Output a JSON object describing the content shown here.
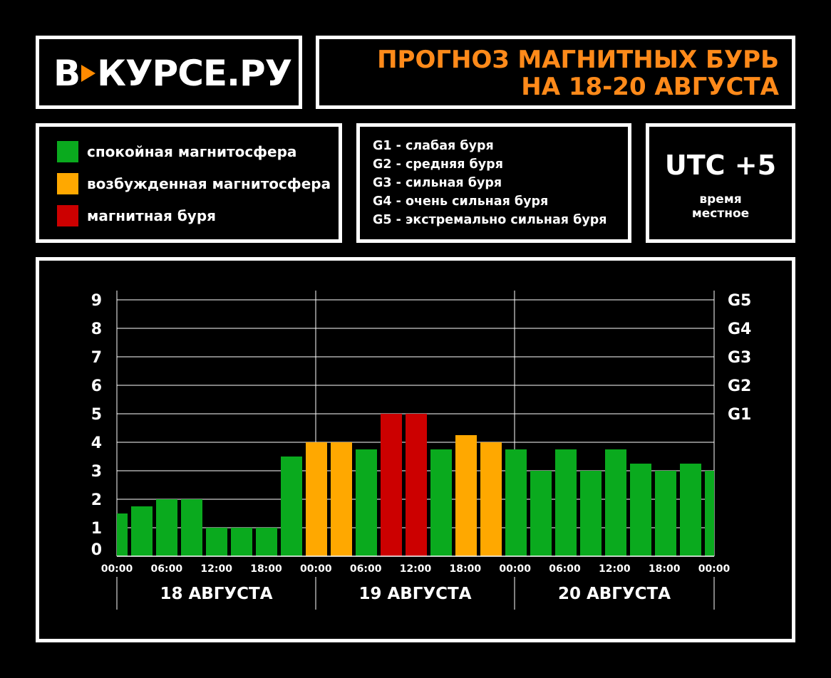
{
  "header": {
    "logo_prefix": "В",
    "logo_suffix": "КУРСЕ.РУ",
    "title_line1": "ПРОГНОЗ МАГНИТНЫХ БУРЬ",
    "title_line2": "НА 18-20 АВГУСТА"
  },
  "legend": [
    {
      "label": "спокойная магнитосфера",
      "color": "#0aaa1e"
    },
    {
      "label": "возбужденная магнитосфера",
      "color": "#ffa800"
    },
    {
      "label": "магнитная буря",
      "color": "#cc0000"
    }
  ],
  "g_levels": [
    "G1 - слабая буря",
    "G2 - средняя буря",
    "G3 - сильная буря",
    "G4 - очень сильная буря",
    "G5 - экстремально сильная буря"
  ],
  "timezone": {
    "main": "UTC +5",
    "sub_line1": "время",
    "sub_line2": "местное"
  },
  "chart_data": {
    "type": "bar",
    "ylim": [
      0,
      9
    ],
    "y_ticks": [
      "0",
      "1",
      "2",
      "3",
      "4",
      "5",
      "6",
      "7",
      "8",
      "9"
    ],
    "right_ticks": [
      {
        "value": 5,
        "label": "G1"
      },
      {
        "value": 6,
        "label": "G2"
      },
      {
        "value": 7,
        "label": "G3"
      },
      {
        "value": 8,
        "label": "G4"
      },
      {
        "value": 9,
        "label": "G5"
      }
    ],
    "x_ticks": [
      "00:00",
      "06:00",
      "12:00",
      "18:00",
      "00:00",
      "06:00",
      "12:00",
      "18:00",
      "00:00",
      "06:00",
      "12:00",
      "18:00",
      "00:00"
    ],
    "days": [
      "18 АВГУСТА",
      "19 АВГУСТА",
      "20 АВГУСТА"
    ],
    "colors": {
      "green": "#0aaa1e",
      "orange": "#ffa800",
      "red": "#cc0000"
    },
    "values": [
      1.5,
      1.75,
      2,
      2,
      1,
      1,
      1,
      3.5,
      4,
      4,
      3.75,
      5,
      5,
      3.75,
      4.25,
      4,
      3.75,
      3,
      3.75,
      3,
      3.75,
      3.25,
      3,
      3.25,
      3
    ],
    "bar_colors": [
      "green",
      "green",
      "green",
      "green",
      "green",
      "green",
      "green",
      "green",
      "orange",
      "orange",
      "green",
      "red",
      "red",
      "green",
      "orange",
      "orange",
      "green",
      "green",
      "green",
      "green",
      "green",
      "green",
      "green",
      "green",
      "green"
    ]
  }
}
